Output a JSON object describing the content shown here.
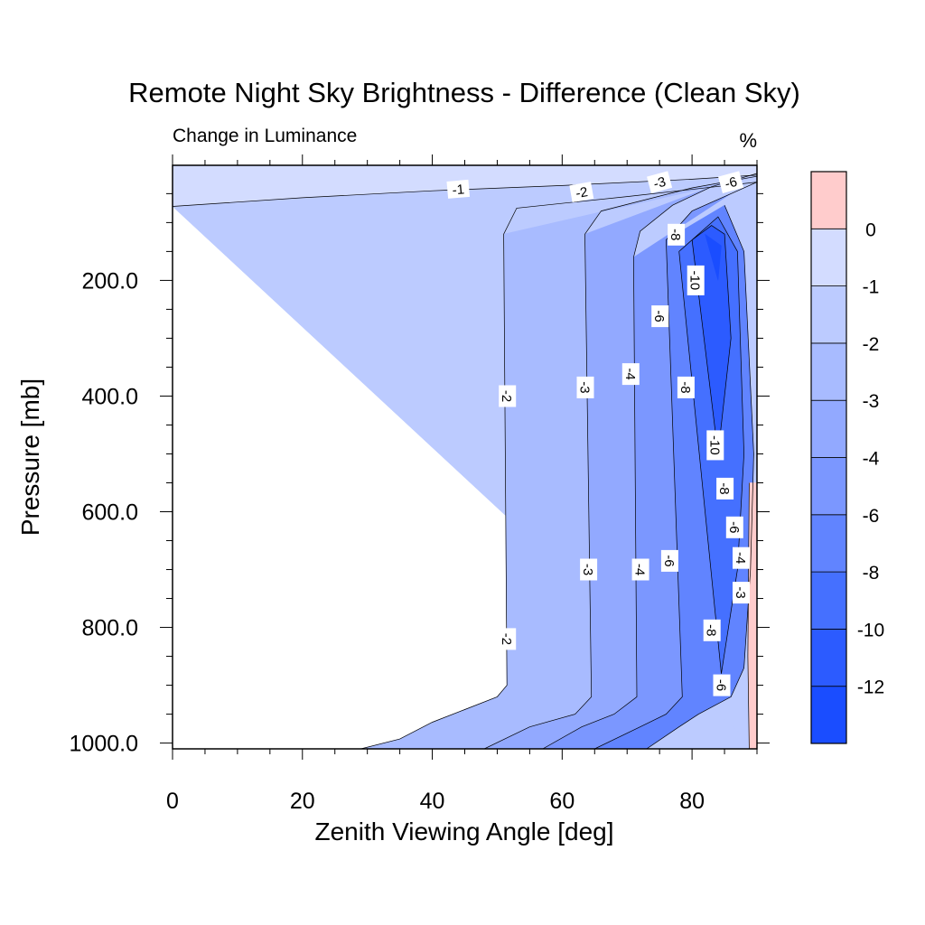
{
  "chart_data": {
    "type": "heatmap",
    "subtype": "filled-contour",
    "title": "Remote Night Sky Brightness - Difference (Clean Sky)",
    "left_string": "Change in Luminance",
    "right_string": "%",
    "xlabel": "Zenith Viewing Angle [deg]",
    "ylabel": "Pressure [mb]",
    "xlim": [
      0,
      90
    ],
    "ylim": [
      1010,
      1
    ],
    "y_axis_inverted": true,
    "x_ticks": [
      "0",
      "20",
      "40",
      "60",
      "80"
    ],
    "x_tick_values": [
      0,
      20,
      40,
      60,
      80
    ],
    "y_ticks": [
      "200.0",
      "400.0",
      "600.0",
      "800.0",
      "1000.0"
    ],
    "y_tick_values": [
      200,
      400,
      600,
      800,
      1000
    ],
    "colorbar": {
      "levels": [
        -12,
        -10,
        -8,
        -6,
        -4,
        -3,
        -2,
        -1,
        0
      ],
      "level_labels": [
        "0",
        "-1",
        "-2",
        "-3",
        "-4",
        "-6",
        "-8",
        "-10",
        "-12"
      ],
      "colors": [
        "#1a4dff",
        "#2c5bff",
        "#4570ff",
        "#6184ff",
        "#7b97ff",
        "#92a9ff",
        "#a8bbff",
        "#bccbff",
        "#d3dcff",
        "#ffcccc"
      ]
    },
    "regions": [
      {
        "range": [
          -1,
          0
        ],
        "color": "#d3dcff",
        "boundary": [
          [
            0,
            1
          ],
          [
            90,
            1
          ],
          [
            90,
            18
          ],
          [
            80,
            25
          ],
          [
            60,
            36
          ],
          [
            40,
            45
          ],
          [
            20,
            57
          ],
          [
            0,
            72
          ]
        ]
      },
      {
        "range": [
          -2,
          -1
        ],
        "color": "#bccbff",
        "boundary": [
          [
            0,
            72
          ],
          [
            20,
            57
          ],
          [
            40,
            45
          ],
          [
            60,
            36
          ],
          [
            80,
            25
          ],
          [
            90,
            18
          ],
          [
            90,
            1010
          ],
          [
            29,
            1010
          ],
          [
            35,
            993
          ],
          [
            40,
            964
          ],
          [
            45,
            942
          ],
          [
            50,
            920
          ],
          [
            51.5,
            900
          ],
          [
            51,
            120
          ],
          [
            53,
            75
          ],
          [
            70,
            55
          ],
          [
            90,
            30
          ],
          [
            90,
            1010
          ]
        ]
      },
      {
        "range": [
          -3,
          -2
        ],
        "color": "#a8bbff",
        "boundary": [
          [
            51,
            120
          ],
          [
            51.5,
            900
          ],
          [
            50,
            920
          ],
          [
            45,
            942
          ],
          [
            40,
            964
          ],
          [
            35,
            993
          ],
          [
            29,
            1010
          ],
          [
            48,
            1010
          ],
          [
            55,
            972
          ],
          [
            62,
            950
          ],
          [
            64.5,
            920
          ],
          [
            63.5,
            120
          ],
          [
            66,
            80
          ],
          [
            80,
            40
          ],
          [
            90,
            20
          ]
        ]
      },
      {
        "range": [
          -4,
          -3
        ],
        "color": "#92a9ff",
        "boundary": [
          [
            63.5,
            120
          ],
          [
            64.5,
            920
          ],
          [
            62,
            950
          ],
          [
            55,
            972
          ],
          [
            48,
            1010
          ],
          [
            57,
            1010
          ],
          [
            63,
            972
          ],
          [
            68,
            950
          ],
          [
            71.5,
            920
          ],
          [
            71,
            160
          ],
          [
            72,
            115
          ],
          [
            77,
            70
          ],
          [
            83,
            38
          ]
        ]
      },
      {
        "range": [
          -6,
          -4
        ],
        "color": "#7b97ff",
        "boundary": [
          [
            71,
            160
          ],
          [
            71.5,
            920
          ],
          [
            68,
            950
          ],
          [
            63,
            972
          ],
          [
            57,
            1010
          ],
          [
            65,
            1010
          ],
          [
            72,
            972
          ],
          [
            76,
            950
          ],
          [
            78.5,
            920
          ],
          [
            76,
            130
          ],
          [
            80,
            80
          ],
          [
            86,
            50
          ]
        ]
      },
      {
        "range": [
          -8,
          -6
        ],
        "color": "#6184ff",
        "boundary": [
          [
            76,
            130
          ],
          [
            78.5,
            920
          ],
          [
            76,
            950
          ],
          [
            72,
            972
          ],
          [
            65,
            1010
          ],
          [
            73,
            1010
          ],
          [
            78,
            972
          ],
          [
            81,
            950
          ],
          [
            86,
            920
          ],
          [
            88,
            870
          ],
          [
            89,
            700
          ],
          [
            89.5,
            500
          ],
          [
            88,
            150
          ],
          [
            85,
            70
          ]
        ]
      },
      {
        "range": [
          -10,
          -8
        ],
        "color": "#4570ff",
        "boundary": [
          [
            78,
            150
          ],
          [
            84.5,
            880
          ],
          [
            87,
            700
          ],
          [
            88,
            500
          ],
          [
            87,
            150
          ],
          [
            84,
            90
          ]
        ]
      },
      {
        "range": [
          -12,
          -10
        ],
        "color": "#2c5bff",
        "boundary": [
          [
            80,
            130
          ],
          [
            84,
            500
          ],
          [
            86,
            300
          ],
          [
            85,
            120
          ],
          [
            83,
            105
          ]
        ]
      },
      {
        "range": [
          -13,
          -12
        ],
        "color": "#1a4dff",
        "boundary": [
          [
            82,
            120
          ],
          [
            84,
            200
          ],
          [
            84.5,
            140
          ]
        ]
      },
      {
        "range": [
          0,
          1
        ],
        "color": "#ffcccc",
        "boundary": [
          [
            88.8,
            550
          ],
          [
            90,
            550
          ],
          [
            90,
            1010
          ],
          [
            88.8,
            1010
          ],
          [
            88.6,
            850
          ]
        ]
      }
    ],
    "contour_lines": [
      [
        [
          0,
          72
        ],
        [
          20,
          57
        ],
        [
          40,
          45
        ],
        [
          60,
          36
        ],
        [
          80,
          25
        ],
        [
          90,
          18
        ]
      ],
      [
        [
          29,
          1010
        ],
        [
          35,
          993
        ],
        [
          40,
          964
        ],
        [
          45,
          942
        ],
        [
          50,
          920
        ],
        [
          51.5,
          900
        ],
        [
          51,
          120
        ],
        [
          53,
          75
        ],
        [
          70,
          55
        ],
        [
          90,
          30
        ]
      ],
      [
        [
          48,
          1010
        ],
        [
          55,
          972
        ],
        [
          62,
          950
        ],
        [
          64.5,
          920
        ],
        [
          63.5,
          120
        ],
        [
          66,
          80
        ],
        [
          80,
          40
        ],
        [
          90,
          20
        ]
      ],
      [
        [
          57,
          1010
        ],
        [
          63,
          972
        ],
        [
          68,
          950
        ],
        [
          71.5,
          920
        ],
        [
          71,
          160
        ],
        [
          72,
          115
        ],
        [
          77,
          70
        ],
        [
          83,
          38
        ],
        [
          90,
          15
        ]
      ],
      [
        [
          65,
          1010
        ],
        [
          72,
          972
        ],
        [
          76,
          950
        ],
        [
          78.5,
          920
        ],
        [
          76,
          130
        ],
        [
          80,
          80
        ],
        [
          86,
          50
        ],
        [
          90,
          30
        ]
      ],
      [
        [
          73,
          1010
        ],
        [
          78,
          972
        ],
        [
          81,
          950
        ],
        [
          86,
          920
        ],
        [
          88,
          870
        ],
        [
          89,
          700
        ],
        [
          89.5,
          500
        ],
        [
          88,
          150
        ],
        [
          85,
          70
        ]
      ],
      [
        [
          78,
          150
        ],
        [
          84.5,
          880
        ],
        [
          87,
          700
        ],
        [
          88,
          500
        ],
        [
          87,
          150
        ],
        [
          84,
          90
        ],
        [
          78,
          150
        ]
      ],
      [
        [
          80,
          130
        ],
        [
          84,
          500
        ],
        [
          86,
          300
        ],
        [
          85,
          120
        ],
        [
          83,
          105
        ],
        [
          80,
          130
        ]
      ],
      [
        [
          88.8,
          550
        ],
        [
          88.6,
          850
        ],
        [
          88.8,
          1010
        ]
      ]
    ],
    "contour_labels": [
      {
        "text": "-1",
        "x": 44,
        "y": 43,
        "angle": -5
      },
      {
        "text": "-2",
        "x": 63,
        "y": 48,
        "angle": -10
      },
      {
        "text": "-3",
        "x": 75,
        "y": 31,
        "angle": -15
      },
      {
        "text": "-6",
        "x": 86,
        "y": 31,
        "angle": -15
      },
      {
        "text": "-8",
        "x": 77.5,
        "y": 121,
        "angle": 90
      },
      {
        "text": "-10",
        "x": 80.5,
        "y": 200,
        "angle": 90
      },
      {
        "text": "-6",
        "x": 75,
        "y": 262,
        "angle": 90
      },
      {
        "text": "-4",
        "x": 70.5,
        "y": 362,
        "angle": 90
      },
      {
        "text": "-8",
        "x": 79,
        "y": 385,
        "angle": 90
      },
      {
        "text": "-2",
        "x": 51.5,
        "y": 400,
        "angle": 90
      },
      {
        "text": "-3",
        "x": 63.5,
        "y": 385,
        "angle": 90
      },
      {
        "text": "-10",
        "x": 83.5,
        "y": 485,
        "angle": 90
      },
      {
        "text": "-8",
        "x": 85,
        "y": 560,
        "angle": 90
      },
      {
        "text": "-6",
        "x": 86.5,
        "y": 627,
        "angle": 90
      },
      {
        "text": "-4",
        "x": 87.5,
        "y": 680,
        "angle": 90
      },
      {
        "text": "-6",
        "x": 76.5,
        "y": 685,
        "angle": 90
      },
      {
        "text": "-3",
        "x": 64,
        "y": 700,
        "angle": 90
      },
      {
        "text": "-4",
        "x": 72,
        "y": 700,
        "angle": 90
      },
      {
        "text": "-3",
        "x": 87.5,
        "y": 740,
        "angle": 90
      },
      {
        "text": "-8",
        "x": 83,
        "y": 805,
        "angle": 90
      },
      {
        "text": "-2",
        "x": 51.5,
        "y": 820,
        "angle": 90
      },
      {
        "text": "-6",
        "x": 84.5,
        "y": 900,
        "angle": 90
      }
    ]
  }
}
